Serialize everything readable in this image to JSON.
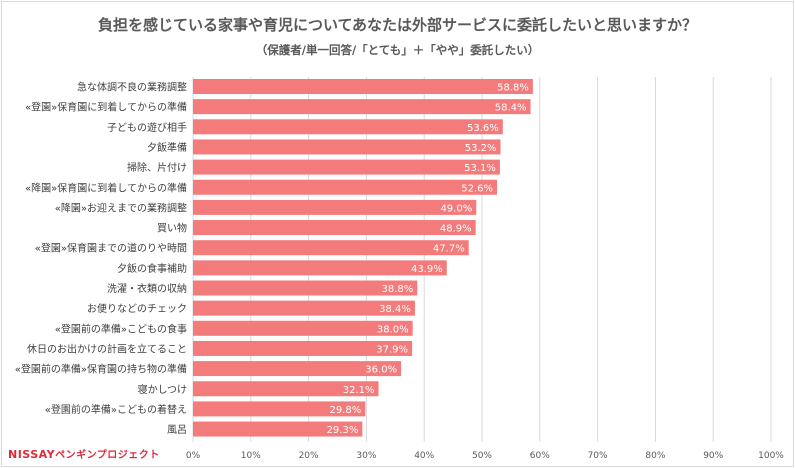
{
  "chart_data": {
    "type": "bar",
    "orientation": "horizontal",
    "title": "負担を感じている家事や育児についてあなたは外部サービスに委託したいと思いますか？",
    "subtitle": "（保護者/単一回答/「とても」＋「やや」委託したい）",
    "categories": [
      "急な体調不良の業務調整",
      "«登園»保育園に到着してからの準備",
      "子どもの遊び相手",
      "夕飯準備",
      "掃除、片付け",
      "«降園»保育園に到着してからの準備",
      "«降園»お迎えまでの業務調整",
      "買い物",
      "«登園»保育園までの道のりや時間",
      "夕飯の食事補助",
      "洗濯・衣類の収納",
      "お便りなどのチェック",
      "«登園前の準備»こどもの食事",
      "休日のお出かけの計画を立てること",
      "«登園前の準備»保育園の持ち物の準備",
      "寝かしつけ",
      "«登園前の準備»こどもの着替え",
      "風呂"
    ],
    "values": [
      58.8,
      58.4,
      53.6,
      53.2,
      53.1,
      52.6,
      49.0,
      48.9,
      47.7,
      43.9,
      38.8,
      38.4,
      38.0,
      37.9,
      36.0,
      32.1,
      29.8,
      29.3
    ],
    "data_labels": [
      "58.8%",
      "58.4%",
      "53.6%",
      "53.2%",
      "53.1%",
      "52.6%",
      "49.0%",
      "48.9%",
      "47.7%",
      "43.9%",
      "38.8%",
      "38.4%",
      "38.0%",
      "37.9%",
      "36.0%",
      "32.1%",
      "29.8%",
      "29.3%"
    ],
    "xlim": [
      0,
      100
    ],
    "xticks": [
      "0%",
      "10%",
      "20%",
      "30%",
      "40%",
      "50%",
      "60%",
      "70%",
      "80%",
      "90%",
      "100%"
    ],
    "grid": true,
    "bar_color": "#f47b7b"
  },
  "logo_text": "NISSAYペンギンプロジェクト"
}
